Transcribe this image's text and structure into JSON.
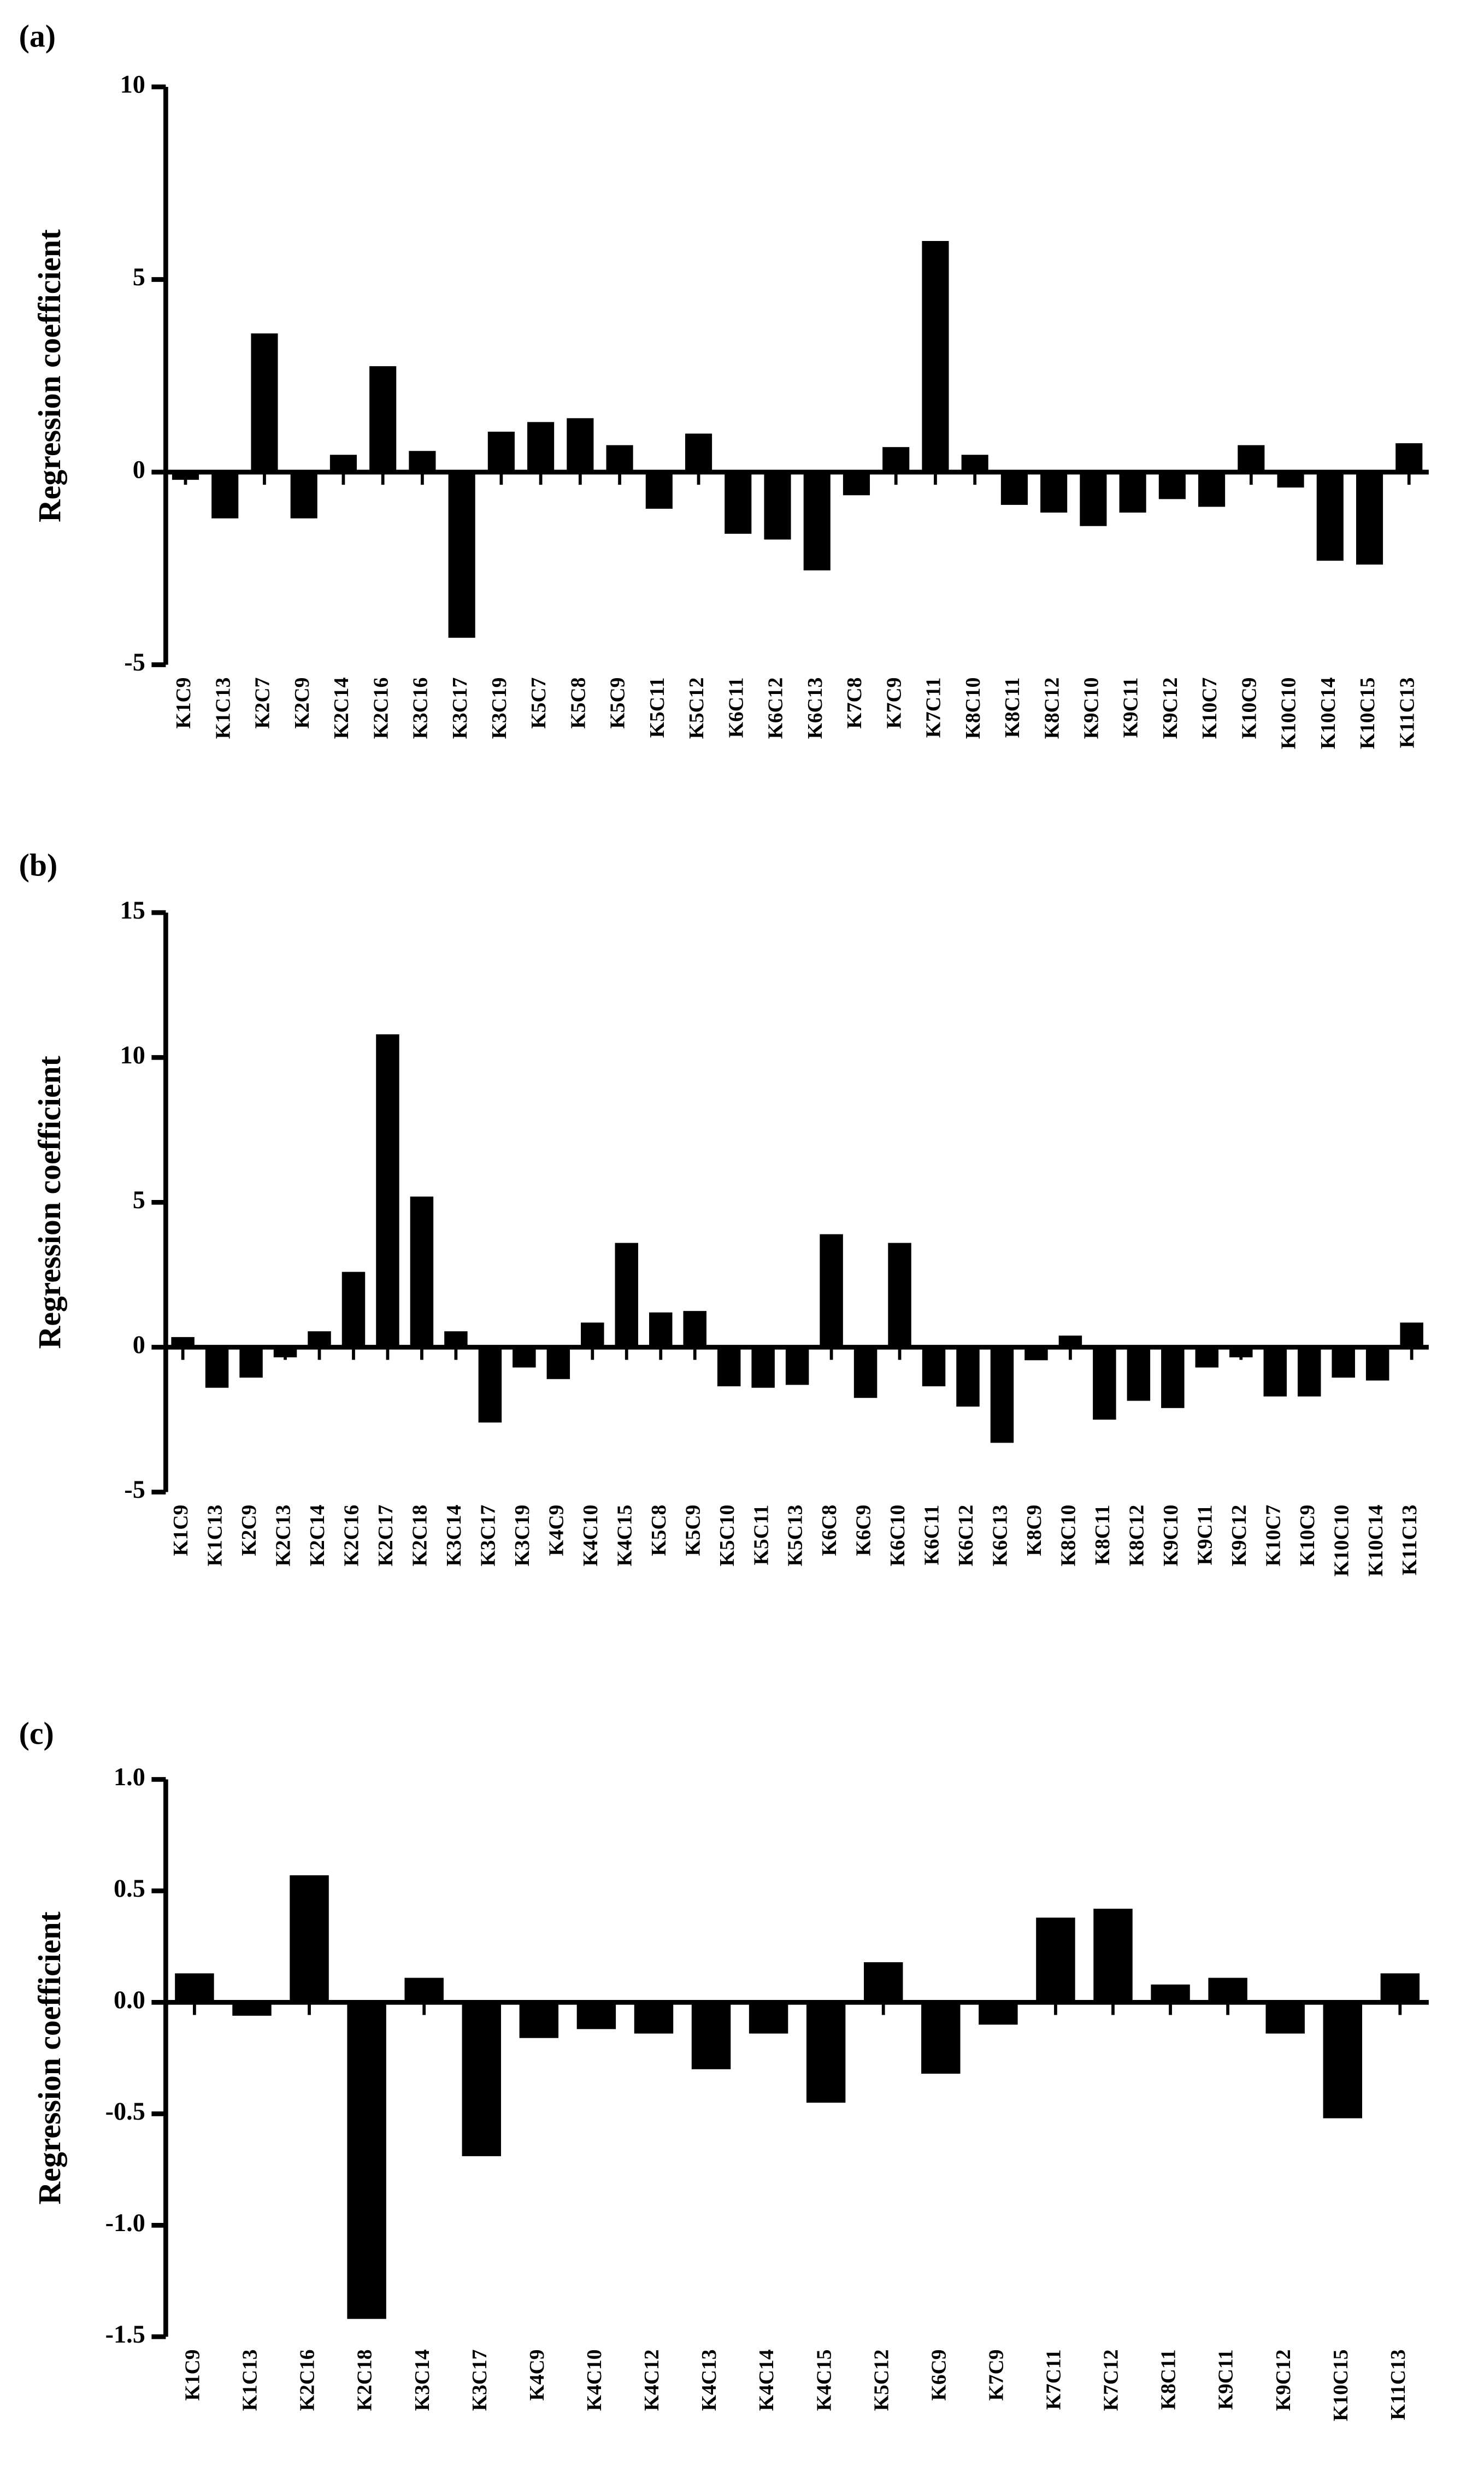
{
  "chart_data": [
    {
      "type": "bar",
      "panel": "(a)",
      "y_label": "Regression coefficient",
      "color": "#000000",
      "categories": [
        "K1C9",
        "K1C13",
        "K2C7",
        "K2C9",
        "K2C14",
        "K2C16",
        "K3C16",
        "K3C17",
        "K3C19",
        "K5C7",
        "K5C8",
        "K5C9",
        "K5C11",
        "K5C12",
        "K6C11",
        "K6C12",
        "K6C13",
        "K7C8",
        "K7C9",
        "K7C11",
        "K8C10",
        "K8C11",
        "K8C12",
        "K9C10",
        "K9C11",
        "K9C12",
        "K10C7",
        "K10C9",
        "K10C10",
        "K10C14",
        "K10C15",
        "K11C13"
      ],
      "values": [
        -0.2,
        -1.2,
        3.6,
        -1.2,
        0.45,
        2.75,
        0.55,
        -4.3,
        1.05,
        1.3,
        1.4,
        0.7,
        -0.95,
        1.0,
        -1.6,
        -1.75,
        -2.55,
        -0.6,
        0.65,
        6.0,
        0.45,
        -0.85,
        -1.05,
        -1.4,
        -1.05,
        -0.7,
        -0.9,
        0.7,
        -0.4,
        -2.3,
        -2.4,
        0.75
      ],
      "ylim": [
        -5,
        10
      ],
      "yticks": [
        -5,
        0,
        5,
        10
      ]
    },
    {
      "type": "bar",
      "panel": "(b)",
      "y_label": "Regression coefficient",
      "color": "#000000",
      "categories": [
        "K1C9",
        "K1C13",
        "K2C9",
        "K2C13",
        "K2C14",
        "K2C16",
        "K2C17",
        "K2C18",
        "K3C14",
        "K3C17",
        "K3C19",
        "K4C9",
        "K4C10",
        "K4C15",
        "K5C8",
        "K5C9",
        "K5C10",
        "K5C11",
        "K5C13",
        "K6C8",
        "K6C9",
        "K6C10",
        "K6C11",
        "K6C12",
        "K6C13",
        "K8C9",
        "K8C10",
        "K8C11",
        "K8C12",
        "K9C10",
        "K9C11",
        "K9C12",
        "K10C7",
        "K10C9",
        "K10C10",
        "K10C14",
        "K11C13"
      ],
      "values": [
        0.35,
        -1.4,
        -1.05,
        -0.35,
        0.55,
        2.6,
        10.8,
        5.2,
        0.55,
        -2.6,
        -0.7,
        -1.1,
        0.85,
        3.6,
        1.2,
        1.25,
        -1.35,
        -1.4,
        -1.3,
        3.9,
        -1.75,
        3.6,
        -1.35,
        -2.05,
        -3.3,
        -0.45,
        0.4,
        -2.5,
        -1.85,
        -2.1,
        -0.7,
        -0.35,
        -1.7,
        -1.7,
        -1.05,
        -1.15,
        0.85
      ],
      "ylim": [
        -5,
        15
      ],
      "yticks": [
        -5,
        0,
        5,
        10,
        15
      ]
    },
    {
      "type": "bar",
      "panel": "(c)",
      "y_label": "Regression coefficient",
      "color": "#000000",
      "categories": [
        "K1C9",
        "K1C13",
        "K2C16",
        "K2C18",
        "K3C14",
        "K3C17",
        "K4C9",
        "K4C10",
        "K4C12",
        "K4C13",
        "K4C14",
        "K4C15",
        "K5C12",
        "K6C9",
        "K7C9",
        "K7C11",
        "K7C12",
        "K8C11",
        "K9C11",
        "K9C12",
        "K10C15",
        "K11C13"
      ],
      "values": [
        0.13,
        -0.06,
        0.57,
        -1.42,
        0.11,
        -0.69,
        -0.16,
        -0.12,
        -0.14,
        -0.3,
        -0.14,
        -0.45,
        0.18,
        -0.32,
        -0.1,
        0.38,
        0.42,
        0.08,
        0.11,
        -0.14,
        -0.52,
        0.13
      ],
      "ylim": [
        -1.5,
        1.0
      ],
      "yticks": [
        -1.5,
        {
          "value": -1.0,
          "label": "-1.0"
        },
        -0.5,
        {
          "value": 0.0,
          "label": "0.0"
        },
        0.5,
        {
          "value": 1.0,
          "label": "1.0"
        }
      ]
    }
  ]
}
